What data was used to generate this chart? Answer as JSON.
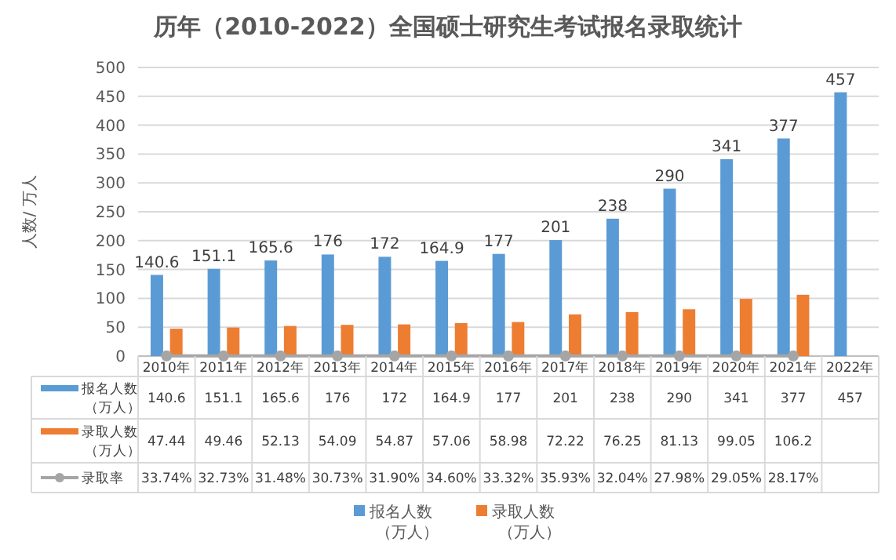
{
  "chart_data": {
    "type": "bar",
    "title": "历年（2010-2022）全国硕士研究生考试报名录取统计",
    "ylabel": "人数/ 万人",
    "categories": [
      "2010年",
      "2011年",
      "2012年",
      "2013年",
      "2014年",
      "2015年",
      "2016年",
      "2017年",
      "2018年",
      "2019年",
      "2020年",
      "2021年",
      "2022年"
    ],
    "series": [
      {
        "name": "报名人数（万人）",
        "color": "#5b9bd5",
        "values": [
          140.6,
          151.1,
          165.6,
          176,
          172,
          164.9,
          177,
          201,
          238,
          290,
          341,
          377,
          457
        ],
        "value_labels": [
          "140.6",
          "151.1",
          "165.6",
          "176",
          "172",
          "164.9",
          "177",
          "201",
          "238",
          "290",
          "341",
          "377",
          "457"
        ]
      },
      {
        "name": "录取人数（万人）",
        "color": "#ed7d31",
        "values": [
          47.44,
          49.46,
          52.13,
          54.09,
          54.87,
          57.06,
          58.98,
          72.22,
          76.25,
          81.13,
          99.05,
          106.2,
          null
        ]
      },
      {
        "name": "录取率",
        "type": "line",
        "color": "#a5a5a5",
        "marker": "circle",
        "values": [
          0.3374,
          0.3273,
          0.3148,
          0.3073,
          0.319,
          0.346,
          0.3332,
          0.3593,
          0.3204,
          0.2798,
          0.2905,
          0.2817,
          null
        ],
        "value_labels": [
          "33.74%",
          "32.73%",
          "31.48%",
          "30.73%",
          "31.90%",
          "34.60%",
          "33.32%",
          "35.93%",
          "32.04%",
          "27.98%",
          "29.05%",
          "28.17%",
          null
        ]
      }
    ],
    "ylim": [
      0,
      500
    ],
    "yticks": [
      0,
      50,
      100,
      150,
      200,
      250,
      300,
      350,
      400,
      450,
      500
    ],
    "grid": "y",
    "data_labels": true,
    "legend": "bottom"
  }
}
